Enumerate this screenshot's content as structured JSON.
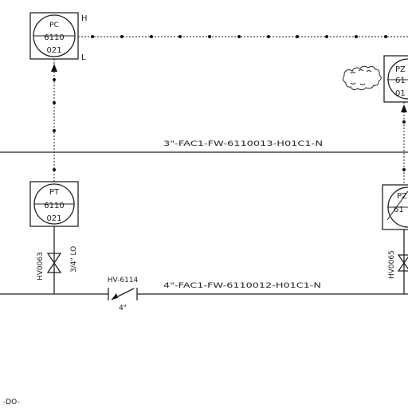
{
  "lines": {
    "upper": {
      "label": "3\"-FAC1-FW-6110013-H01C1-N"
    },
    "lower": {
      "label": "4\"-FAC1-FW-6110012-H01C1-N"
    }
  },
  "instruments": {
    "pc": {
      "tag": "PC",
      "number": "6110",
      "suffix": "021",
      "high": "H",
      "low": "L"
    },
    "pt": {
      "tag": "PT",
      "number": "6110",
      "suffix": "021"
    },
    "pz_top": {
      "tag": "PZ",
      "number": "61",
      "suffix": "01"
    },
    "pz_bottom": {
      "tag": "PZ",
      "number": "61"
    }
  },
  "valves": {
    "left_root": {
      "tag": "HV0063",
      "note": "3/4\" LO"
    },
    "check": {
      "tag": "HV-6114",
      "size": "4\""
    },
    "right_root": {
      "tag": "HV0065"
    }
  },
  "misc": {
    "offpage": "-DO-"
  }
}
